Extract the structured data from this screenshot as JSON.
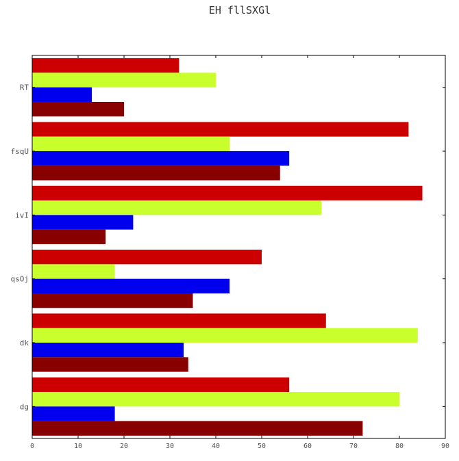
{
  "chart_data": {
    "type": "bar",
    "orientation": "horizontal",
    "title": "EH fllSXGl",
    "xlabel": "",
    "ylabel": "",
    "categories": [
      "RT",
      "fsqU",
      "ivI",
      "qsOj",
      "dk",
      "dg"
    ],
    "xlim": [
      0,
      90
    ],
    "x_ticks": [
      0,
      10,
      20,
      30,
      40,
      50,
      60,
      70,
      80,
      90
    ],
    "grid": false,
    "legend": "none",
    "series": [
      {
        "color": "#cc0000",
        "values": [
          32,
          82,
          85,
          50,
          64,
          56
        ]
      },
      {
        "color": "#c8ff2c",
        "values": [
          40,
          43,
          63,
          18,
          84,
          80
        ]
      },
      {
        "color": "#0000ee",
        "values": [
          13,
          56,
          22,
          43,
          33,
          18
        ]
      },
      {
        "color": "#880000",
        "values": [
          20,
          54,
          16,
          35,
          34,
          72
        ]
      }
    ]
  }
}
